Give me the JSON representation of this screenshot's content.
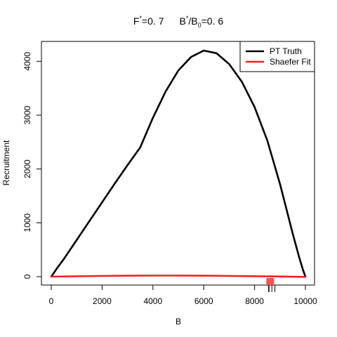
{
  "chart_data": {
    "type": "line",
    "title": {
      "f_symbol": "F",
      "f_sup": "*",
      "f_value": "=0. 7",
      "b_symbol": "B",
      "b_sup": "*",
      "b_mid": "/B",
      "b_sub": "0",
      "b_value": "=0. 6"
    },
    "xlabel": "B",
    "ylabel": "Recruitment",
    "xlim": [
      0,
      10000
    ],
    "ylim": [
      0,
      4200
    ],
    "xticks": [
      0,
      2000,
      4000,
      6000,
      8000,
      10000
    ],
    "yticks": [
      0,
      1000,
      2000,
      3000,
      4000
    ],
    "legend": {
      "position": "top-right"
    },
    "series": [
      {
        "name": "PT Truth",
        "color": "#000000",
        "x": [
          0,
          250,
          500,
          1000,
          1500,
          2000,
          2500,
          3000,
          3500,
          4000,
          4500,
          5000,
          5500,
          6000,
          6500,
          7000,
          7500,
          8000,
          8500,
          9000,
          9250,
          9500,
          9750,
          9900,
          10000
        ],
        "y": [
          0,
          170,
          330,
          680,
          1030,
          1380,
          1730,
          2070,
          2400,
          2950,
          3440,
          3830,
          4080,
          4200,
          4150,
          3950,
          3620,
          3150,
          2530,
          1720,
          1260,
          800,
          370,
          130,
          0
        ]
      },
      {
        "name": "Shaefer Fit",
        "color": "#ee2222",
        "x": [
          0,
          1000,
          2000,
          3000,
          4000,
          5000,
          6000,
          7000,
          8000,
          9000,
          10000
        ],
        "y": [
          0,
          7,
          13,
          17,
          19,
          19,
          17,
          13,
          8,
          3,
          -5
        ]
      }
    ],
    "markers": {
      "bmsy_box": {
        "x": 8600,
        "color": "#ee5555"
      },
      "rug_x": [
        8560,
        8680,
        8800
      ]
    }
  }
}
